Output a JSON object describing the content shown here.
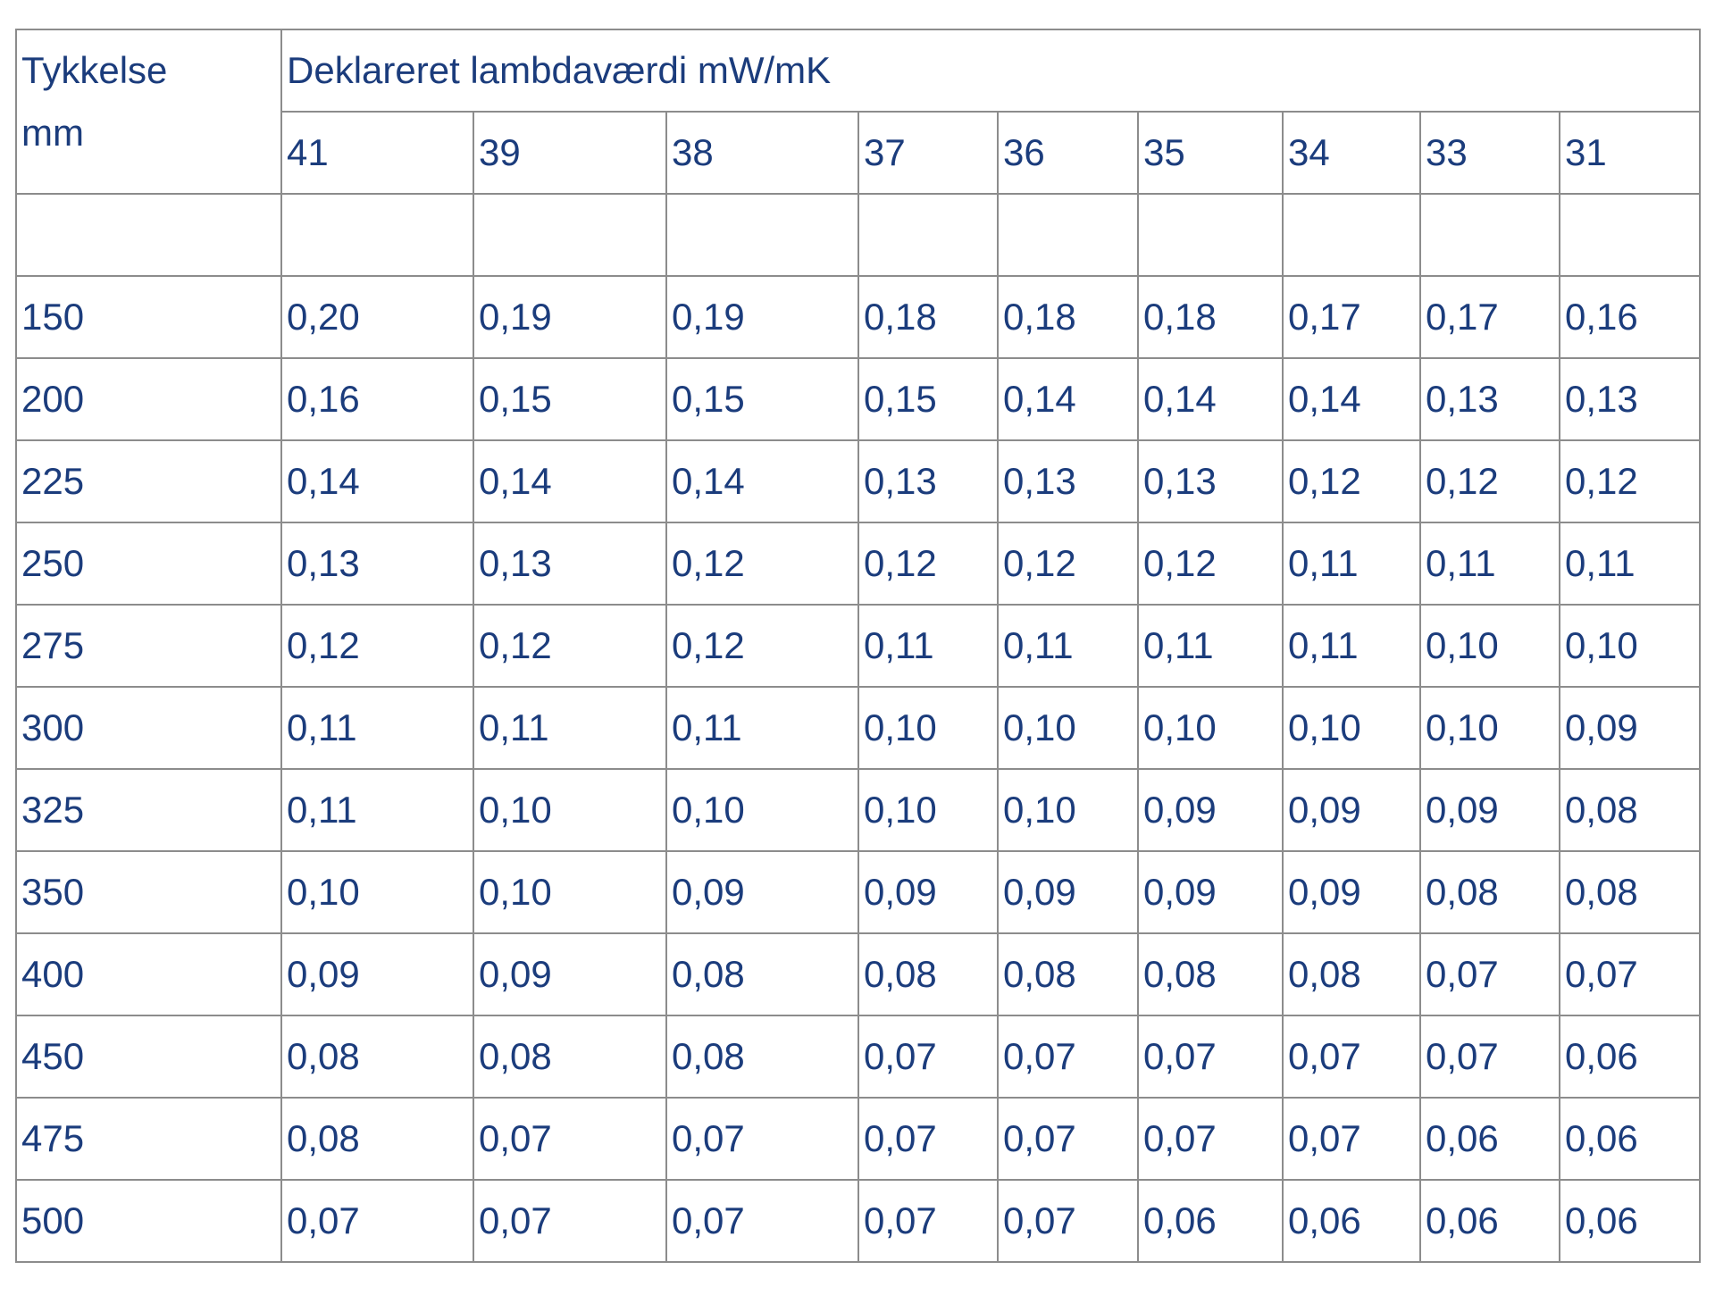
{
  "table": {
    "corner_lines": [
      "Tykkelse",
      "mm"
    ],
    "group_header": "Deklareret lambdaværdi mW/mK",
    "lambdas": [
      41,
      39,
      38,
      37,
      36,
      35,
      34,
      33,
      31
    ],
    "rows": [
      [
        150,
        "0,20",
        "0,19",
        "0,19",
        "0,18",
        "0,18",
        "0,18",
        "0,17",
        "0,17",
        "0,16"
      ],
      [
        200,
        "0,16",
        "0,15",
        "0,15",
        "0,15",
        "0,14",
        "0,14",
        "0,14",
        "0,13",
        "0,13"
      ],
      [
        225,
        "0,14",
        "0,14",
        "0,14",
        "0,13",
        "0,13",
        "0,13",
        "0,12",
        "0,12",
        "0,12"
      ],
      [
        250,
        "0,13",
        "0,13",
        "0,12",
        "0,12",
        "0,12",
        "0,12",
        "0,11",
        "0,11",
        "0,11"
      ],
      [
        275,
        "0,12",
        "0,12",
        "0,12",
        "0,11",
        "0,11",
        "0,11",
        "0,11",
        "0,10",
        "0,10"
      ],
      [
        300,
        "0,11",
        "0,11",
        "0,11",
        "0,10",
        "0,10",
        "0,10",
        "0,10",
        "0,10",
        "0,09"
      ],
      [
        325,
        "0,11",
        "0,10",
        "0,10",
        "0,10",
        "0,10",
        "0,09",
        "0,09",
        "0,09",
        "0,08"
      ],
      [
        350,
        "0,10",
        "0,10",
        "0,09",
        "0,09",
        "0,09",
        "0,09",
        "0,09",
        "0,08",
        "0,08"
      ],
      [
        400,
        "0,09",
        "0,09",
        "0,08",
        "0,08",
        "0,08",
        "0,08",
        "0,08",
        "0,07",
        "0,07"
      ],
      [
        450,
        "0,08",
        "0,08",
        "0,08",
        "0,07",
        "0,07",
        "0,07",
        "0,07",
        "0,07",
        "0,06"
      ],
      [
        475,
        "0,08",
        "0,07",
        "0,07",
        "0,07",
        "0,07",
        "0,07",
        "0,07",
        "0,06",
        "0,06"
      ],
      [
        500,
        "0,07",
        "0,07",
        "0,07",
        "0,07",
        "0,07",
        "0,06",
        "0,06",
        "0,06",
        "0,06"
      ]
    ]
  }
}
